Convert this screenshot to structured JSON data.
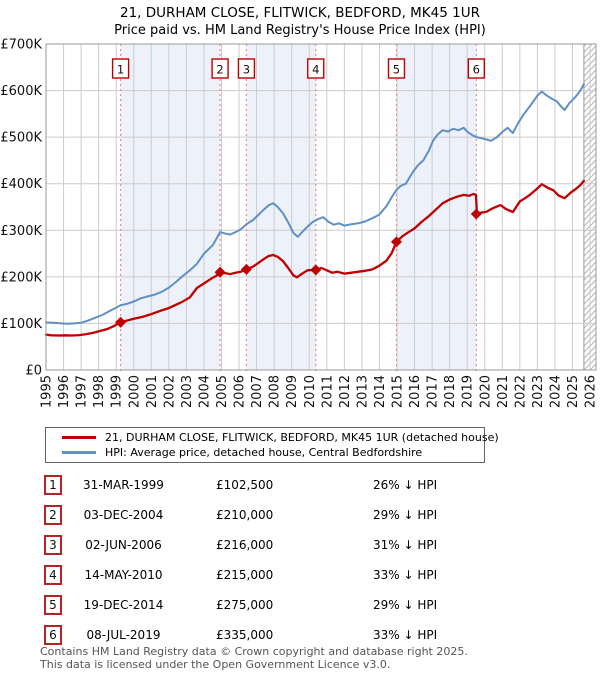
{
  "title": "21, DURHAM CLOSE, FLITWICK, BEDFORD, MK45 1UR",
  "subtitle": "Price paid vs. HM Land Registry's House Price Index (HPI)",
  "chart_data": {
    "type": "line",
    "x_range": [
      1995,
      2026.34
    ],
    "y_range": [
      0,
      700000
    ],
    "grid": true,
    "legend_position": "below",
    "x_ticks": [
      "1995",
      "1996",
      "1997",
      "1998",
      "1999",
      "2000",
      "2001",
      "2002",
      "2003",
      "2004",
      "2005",
      "2006",
      "2007",
      "2008",
      "2009",
      "2010",
      "2011",
      "2012",
      "2013",
      "2014",
      "2015",
      "2016",
      "2017",
      "2018",
      "2019",
      "2020",
      "2021",
      "2022",
      "2023",
      "2024",
      "2025",
      "2026"
    ],
    "y_ticks": [
      {
        "value": 0,
        "label": "£0"
      },
      {
        "value": 100,
        "label": "£100K"
      },
      {
        "value": 200,
        "label": "£200K"
      },
      {
        "value": 300,
        "label": "£300K"
      },
      {
        "value": 400,
        "label": "£400K"
      },
      {
        "value": 500,
        "label": "£500K"
      },
      {
        "value": 600,
        "label": "£600K"
      },
      {
        "value": 700,
        "label": "£700K"
      }
    ],
    "series": [
      {
        "name": "21, DURHAM CLOSE, FLITWICK, BEDFORD, MK45 1UR (detached house)",
        "color": "#c00000",
        "unit": "GBP thousands",
        "points": [
          [
            1995.0,
            76
          ],
          [
            1995.3,
            74.5
          ],
          [
            1995.7,
            74
          ],
          [
            1996.1,
            74.5
          ],
          [
            1996.5,
            74
          ],
          [
            1996.9,
            75
          ],
          [
            1997.3,
            77
          ],
          [
            1997.7,
            80
          ],
          [
            1998.1,
            84
          ],
          [
            1998.5,
            88
          ],
          [
            1998.9,
            95
          ],
          [
            1999.25,
            102.5
          ],
          [
            1999.6,
            106
          ],
          [
            2000.0,
            110
          ],
          [
            2000.5,
            114
          ],
          [
            2001.0,
            120
          ],
          [
            2001.5,
            127
          ],
          [
            2002.0,
            133
          ],
          [
            2002.4,
            140
          ],
          [
            2002.8,
            147
          ],
          [
            2003.2,
            156
          ],
          [
            2003.6,
            176
          ],
          [
            2004.0,
            186
          ],
          [
            2004.45,
            197
          ],
          [
            2004.7,
            202
          ],
          [
            2004.92,
            210
          ],
          [
            2005.2,
            208
          ],
          [
            2005.5,
            206
          ],
          [
            2005.8,
            209
          ],
          [
            2006.1,
            211
          ],
          [
            2006.42,
            216
          ],
          [
            2006.8,
            222
          ],
          [
            2007.1,
            230
          ],
          [
            2007.4,
            238
          ],
          [
            2007.7,
            245
          ],
          [
            2007.95,
            247
          ],
          [
            2008.2,
            243
          ],
          [
            2008.5,
            234
          ],
          [
            2008.8,
            219
          ],
          [
            2009.1,
            203
          ],
          [
            2009.3,
            199
          ],
          [
            2009.6,
            207
          ],
          [
            2009.9,
            214
          ],
          [
            2010.37,
            215
          ],
          [
            2010.7,
            219
          ],
          [
            2011.0,
            214
          ],
          [
            2011.3,
            209
          ],
          [
            2011.6,
            211
          ],
          [
            2012.0,
            207
          ],
          [
            2012.4,
            209
          ],
          [
            2012.8,
            211
          ],
          [
            2013.2,
            213
          ],
          [
            2013.6,
            216
          ],
          [
            2014.0,
            224
          ],
          [
            2014.4,
            235
          ],
          [
            2014.7,
            251
          ],
          [
            2014.97,
            275
          ],
          [
            2015.3,
            287
          ],
          [
            2015.7,
            297
          ],
          [
            2016.0,
            304
          ],
          [
            2016.4,
            318
          ],
          [
            2016.8,
            330
          ],
          [
            2017.2,
            344
          ],
          [
            2017.6,
            358
          ],
          [
            2018.0,
            366
          ],
          [
            2018.4,
            372
          ],
          [
            2018.8,
            376
          ],
          [
            2019.1,
            374
          ],
          [
            2019.35,
            378
          ],
          [
            2019.5,
            376
          ],
          [
            2019.55,
            335
          ],
          [
            2019.8,
            338
          ],
          [
            2020.1,
            340
          ],
          [
            2020.5,
            348
          ],
          [
            2020.9,
            354
          ],
          [
            2021.2,
            346
          ],
          [
            2021.6,
            339
          ],
          [
            2022.0,
            362
          ],
          [
            2022.3,
            369
          ],
          [
            2022.6,
            377
          ],
          [
            2023.0,
            390
          ],
          [
            2023.25,
            399
          ],
          [
            2023.6,
            391
          ],
          [
            2023.9,
            386
          ],
          [
            2024.2,
            375
          ],
          [
            2024.55,
            369
          ],
          [
            2024.9,
            381
          ],
          [
            2025.2,
            389
          ],
          [
            2025.45,
            397
          ],
          [
            2025.65,
            406
          ]
        ]
      },
      {
        "name": "HPI: Average price, detached house, Central Bedfordshire",
        "color": "#6090c4",
        "unit": "GBP thousands",
        "points": [
          [
            1995.0,
            102
          ],
          [
            1995.4,
            101.5
          ],
          [
            1995.8,
            100.5
          ],
          [
            1996.2,
            99.5
          ],
          [
            1996.6,
            100
          ],
          [
            1997.0,
            101.5
          ],
          [
            1997.4,
            106
          ],
          [
            1997.8,
            112
          ],
          [
            1998.2,
            118
          ],
          [
            1998.6,
            126
          ],
          [
            1999.0,
            134
          ],
          [
            1999.25,
            139
          ],
          [
            1999.6,
            142
          ],
          [
            2000.0,
            147
          ],
          [
            2000.4,
            154
          ],
          [
            2000.8,
            158
          ],
          [
            2001.2,
            162
          ],
          [
            2001.6,
            168
          ],
          [
            2002.0,
            177
          ],
          [
            2002.4,
            189
          ],
          [
            2002.8,
            202
          ],
          [
            2003.2,
            214
          ],
          [
            2003.6,
            228
          ],
          [
            2004.0,
            250
          ],
          [
            2004.5,
            268
          ],
          [
            2004.92,
            296
          ],
          [
            2005.2,
            293
          ],
          [
            2005.5,
            291
          ],
          [
            2005.8,
            296
          ],
          [
            2006.1,
            302
          ],
          [
            2006.42,
            313
          ],
          [
            2006.8,
            322
          ],
          [
            2007.1,
            333
          ],
          [
            2007.4,
            344
          ],
          [
            2007.7,
            354
          ],
          [
            2007.95,
            358
          ],
          [
            2008.2,
            350
          ],
          [
            2008.5,
            337
          ],
          [
            2008.8,
            317
          ],
          [
            2009.1,
            294
          ],
          [
            2009.35,
            286
          ],
          [
            2009.6,
            296
          ],
          [
            2009.9,
            308
          ],
          [
            2010.2,
            318
          ],
          [
            2010.5,
            324
          ],
          [
            2010.8,
            328
          ],
          [
            2011.1,
            318
          ],
          [
            2011.4,
            312
          ],
          [
            2011.7,
            315
          ],
          [
            2012.0,
            310
          ],
          [
            2012.4,
            313
          ],
          [
            2012.8,
            315
          ],
          [
            2013.2,
            319
          ],
          [
            2013.6,
            326
          ],
          [
            2014.0,
            334
          ],
          [
            2014.4,
            352
          ],
          [
            2014.7,
            371
          ],
          [
            2014.97,
            387
          ],
          [
            2015.2,
            395
          ],
          [
            2015.5,
            400
          ],
          [
            2015.9,
            425
          ],
          [
            2016.2,
            440
          ],
          [
            2016.5,
            450
          ],
          [
            2016.8,
            470
          ],
          [
            2017.05,
            492
          ],
          [
            2017.3,
            505
          ],
          [
            2017.6,
            515
          ],
          [
            2017.9,
            512
          ],
          [
            2018.2,
            518
          ],
          [
            2018.5,
            515
          ],
          [
            2018.8,
            520
          ],
          [
            2019.0,
            512
          ],
          [
            2019.3,
            504
          ],
          [
            2019.52,
            500
          ],
          [
            2019.8,
            498
          ],
          [
            2020.1,
            495
          ],
          [
            2020.35,
            492
          ],
          [
            2020.7,
            500
          ],
          [
            2021.0,
            511
          ],
          [
            2021.3,
            520
          ],
          [
            2021.6,
            509
          ],
          [
            2021.9,
            530
          ],
          [
            2022.2,
            548
          ],
          [
            2022.6,
            568
          ],
          [
            2023.0,
            589
          ],
          [
            2023.25,
            598
          ],
          [
            2023.5,
            590
          ],
          [
            2023.8,
            583
          ],
          [
            2024.1,
            577
          ],
          [
            2024.3,
            568
          ],
          [
            2024.55,
            558
          ],
          [
            2024.8,
            572
          ],
          [
            2025.0,
            580
          ],
          [
            2025.2,
            588
          ],
          [
            2025.45,
            600
          ],
          [
            2025.65,
            614
          ]
        ]
      }
    ],
    "sales": [
      {
        "n": "1",
        "year": 1999.25,
        "price": 102500
      },
      {
        "n": "2",
        "year": 2004.92,
        "price": 210000
      },
      {
        "n": "3",
        "year": 2006.42,
        "price": 216000
      },
      {
        "n": "4",
        "year": 2010.37,
        "price": 215000
      },
      {
        "n": "5",
        "year": 2014.97,
        "price": 275000
      },
      {
        "n": "6",
        "year": 2019.52,
        "price": 335000
      }
    ],
    "owned_bands": [
      [
        1999.25,
        2004.92
      ],
      [
        2006.42,
        2010.37
      ],
      [
        2014.97,
        2019.52
      ]
    ],
    "future_hatch": [
      2025.65,
      2026.34
    ],
    "colors": {
      "price_line": "#c00000",
      "hpi_line": "#6090c4",
      "sale_marker": "#c00000",
      "sale_vline": "#f28b8b",
      "owned_band": "#edf2fa",
      "grid": "#cccccc",
      "plot_border": "#999999",
      "hatch": "#b5b5b5"
    }
  },
  "legend": {
    "items": [
      {
        "label": "21, DURHAM CLOSE, FLITWICK, BEDFORD, MK45 1UR (detached house)",
        "color": "#c00000"
      },
      {
        "label": "HPI: Average price, detached house, Central Bedfordshire",
        "color": "#6090c4"
      }
    ]
  },
  "table": {
    "rows": [
      {
        "n": "1",
        "date": "31-MAR-1999",
        "price": "£102,500",
        "vs_hpi": "26% ↓ HPI"
      },
      {
        "n": "2",
        "date": "03-DEC-2004",
        "price": "£210,000",
        "vs_hpi": "29% ↓ HPI"
      },
      {
        "n": "3",
        "date": "02-JUN-2006",
        "price": "£216,000",
        "vs_hpi": "31% ↓ HPI"
      },
      {
        "n": "4",
        "date": "14-MAY-2010",
        "price": "£215,000",
        "vs_hpi": "33% ↓ HPI"
      },
      {
        "n": "5",
        "date": "19-DEC-2014",
        "price": "£275,000",
        "vs_hpi": "29% ↓ HPI"
      },
      {
        "n": "6",
        "date": "08-JUL-2019",
        "price": "£335,000",
        "vs_hpi": "33% ↓ HPI"
      }
    ]
  },
  "footer": {
    "line1": "Contains HM Land Registry data © Crown copyright and database right 2025.",
    "line2": "This data is licensed under the Open Government Licence v3.0."
  }
}
